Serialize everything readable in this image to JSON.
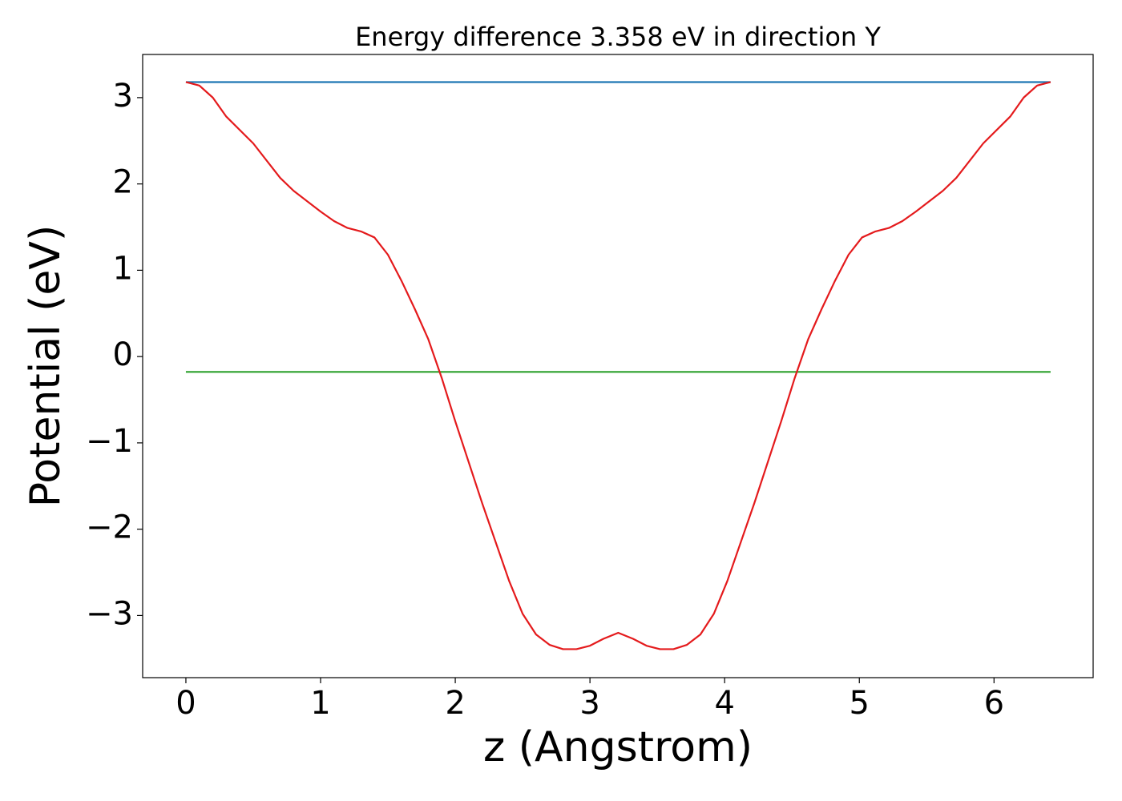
{
  "chart_data": {
    "type": "line",
    "title": "Energy difference 3.358 eV in direction Y",
    "x_label": "z (Angstrom)",
    "y_label": "Potential (eV)",
    "xlim": [
      -0.321,
      6.736
    ],
    "ylim": [
      -3.72,
      3.5
    ],
    "xticks": [
      0,
      1,
      2,
      3,
      4,
      5,
      6
    ],
    "yticks": [
      {
        "value": -3,
        "label": "−3"
      },
      {
        "value": -2,
        "label": "−2"
      },
      {
        "value": -1,
        "label": "−1"
      },
      0,
      1,
      2,
      3
    ],
    "grid": false,
    "series": [
      {
        "color": "#1f77b4",
        "x": [
          0,
          6.42
        ],
        "values": [
          3.18,
          3.18
        ]
      },
      {
        "color": "#2ca02c",
        "x": [
          0,
          6.42
        ],
        "values": [
          -0.178,
          -0.178
        ]
      },
      {
        "color": "#e41a1c",
        "x": [
          0,
          0.1,
          0.2,
          0.3,
          0.5,
          0.7,
          0.8,
          1.0,
          1.1,
          1.2,
          1.3,
          1.4,
          1.5,
          1.6,
          1.7,
          1.8,
          1.9,
          2.0,
          2.2,
          2.4,
          2.5,
          2.6,
          2.7,
          2.8,
          2.9,
          3.0,
          3.1,
          3.21,
          3.32,
          3.42,
          3.52,
          3.62,
          3.72,
          3.82,
          3.92,
          4.02,
          4.22,
          4.42,
          4.52,
          4.62,
          4.72,
          4.82,
          4.92,
          5.02,
          5.12,
          5.22,
          5.32,
          5.42,
          5.62,
          5.72,
          5.92,
          6.12,
          6.22,
          6.32,
          6.42
        ],
        "values": [
          3.18,
          3.14,
          3.0,
          2.78,
          2.47,
          2.07,
          1.92,
          1.68,
          1.57,
          1.49,
          1.45,
          1.38,
          1.18,
          0.88,
          0.55,
          0.2,
          -0.25,
          -0.75,
          -1.7,
          -2.6,
          -2.98,
          -3.22,
          -3.34,
          -3.39,
          -3.39,
          -3.35,
          -3.27,
          -3.2,
          -3.27,
          -3.35,
          -3.39,
          -3.39,
          -3.34,
          -3.22,
          -2.98,
          -2.6,
          -1.7,
          -0.75,
          -0.25,
          0.2,
          0.55,
          0.88,
          1.18,
          1.38,
          1.45,
          1.49,
          1.57,
          1.68,
          1.92,
          2.07,
          2.47,
          2.78,
          3.0,
          3.14,
          3.18
        ]
      }
    ]
  }
}
